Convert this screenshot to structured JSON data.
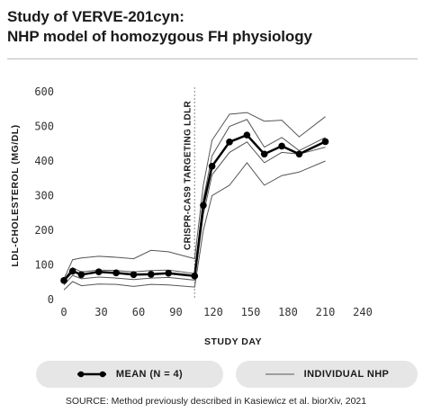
{
  "title_line1": "Study of VERVE-201cyn:",
  "title_line2": "NHP model of homozygous FH physiology",
  "source": "SOURCE: Method previously described in Kasiewicz et al. biorXiv, 2021",
  "colors": {
    "mean": "#000000",
    "individual": "#555555",
    "annotation_line": "#888888",
    "legend_bg": "#e6e6e6"
  },
  "legend": {
    "mean_label": "MEAN (N = 4)",
    "individual_label": "INDIVIDUAL NHP"
  },
  "chart_data": {
    "type": "line",
    "xlabel": "STUDY DAY",
    "ylabel": "LDL-CHOLESTEROL (MG/DL)",
    "xlim": [
      0,
      240
    ],
    "ylim": [
      0,
      600
    ],
    "x_ticks": [
      0,
      30,
      60,
      90,
      120,
      150,
      180,
      210,
      240
    ],
    "y_ticks": [
      0,
      100,
      200,
      300,
      400,
      500,
      600
    ],
    "grid": false,
    "annotation": {
      "x": 105,
      "label": "CRISPR-CAS9 TARGETING LDLR"
    },
    "series": [
      {
        "name": "MEAN (N = 4)",
        "role": "mean",
        "x": [
          0,
          7,
          14,
          28,
          42,
          56,
          70,
          84,
          105,
          112,
          119,
          133,
          147,
          161,
          175,
          189,
          210
        ],
        "y": [
          55,
          82,
          72,
          80,
          77,
          72,
          73,
          76,
          68,
          272,
          385,
          455,
          475,
          420,
          443,
          420,
          456
        ]
      },
      {
        "name": "INDIVIDUAL NHP",
        "role": "individual",
        "x": [
          0,
          7,
          14,
          28,
          42,
          56,
          70,
          84,
          105,
          112,
          119,
          133,
          147,
          161,
          175,
          189,
          210
        ],
        "y": [
          60,
          115,
          120,
          125,
          122,
          118,
          142,
          138,
          118,
          330,
          460,
          535,
          540,
          515,
          518,
          470,
          528
        ]
      },
      {
        "name": "INDIVIDUAL NHP",
        "role": "individual",
        "x": [
          0,
          7,
          14,
          28,
          42,
          56,
          70,
          84,
          105,
          112,
          119,
          133,
          147,
          161,
          175,
          189,
          210
        ],
        "y": [
          58,
          92,
          80,
          85,
          84,
          80,
          84,
          85,
          75,
          290,
          415,
          500,
          520,
          440,
          468,
          430,
          468
        ]
      },
      {
        "name": "INDIVIDUAL NHP",
        "role": "individual",
        "x": [
          0,
          7,
          14,
          28,
          42,
          56,
          70,
          84,
          105,
          112,
          119,
          133,
          147,
          161,
          175,
          189,
          210
        ],
        "y": [
          42,
          70,
          60,
          65,
          62,
          58,
          62,
          64,
          56,
          245,
          360,
          425,
          455,
          395,
          425,
          420,
          440
        ]
      },
      {
        "name": "INDIVIDUAL NHP",
        "role": "individual",
        "x": [
          0,
          7,
          14,
          28,
          42,
          56,
          70,
          84,
          105,
          112,
          119,
          133,
          147,
          161,
          175,
          189,
          210
        ],
        "y": [
          28,
          52,
          40,
          45,
          44,
          38,
          44,
          42,
          36,
          200,
          300,
          330,
          395,
          330,
          358,
          368,
          400
        ]
      }
    ]
  }
}
